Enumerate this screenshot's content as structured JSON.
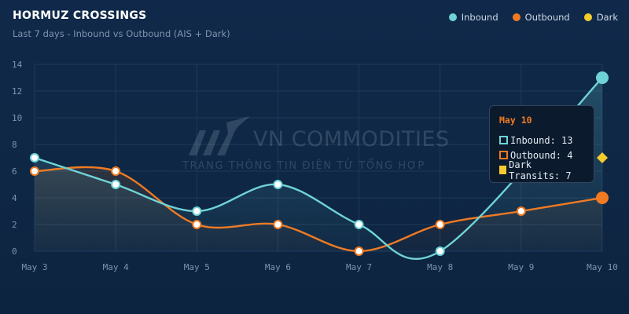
{
  "header": {
    "title": "HORMUZ CROSSINGS",
    "subtitle": "Last 7 days - Inbound vs Outbound (AIS + Dark)"
  },
  "colors": {
    "background": "#10294a",
    "inbound": "#6fd3d6",
    "outbound": "#f07b23",
    "dark": "#f5cc2e",
    "grid": "#1e3a5c",
    "tick": "#7f93ad"
  },
  "legend": [
    {
      "label": "Inbound",
      "color": "#6fd3d6"
    },
    {
      "label": "Outbound",
      "color": "#f07b23"
    },
    {
      "label": "Dark",
      "color": "#f5cc2e"
    }
  ],
  "chart_data": {
    "type": "line",
    "title": "HORMUZ CROSSINGS",
    "subtitle": "Last 7 days - Inbound vs Outbound (AIS + Dark)",
    "categories": [
      "May 3",
      "May 4",
      "May 5",
      "May 6",
      "May 7",
      "May 8",
      "May 9",
      "May 10"
    ],
    "series": [
      {
        "name": "Inbound",
        "values": [
          7,
          5,
          3,
          5,
          2,
          0,
          null,
          13
        ],
        "color": "#6fd3d6",
        "style": "smooth-area"
      },
      {
        "name": "Outbound",
        "values": [
          6,
          6,
          2,
          2,
          0,
          2,
          3,
          4
        ],
        "color": "#f07b23",
        "style": "smooth-area"
      },
      {
        "name": "Dark",
        "values": [
          null,
          null,
          null,
          null,
          null,
          null,
          null,
          7
        ],
        "color": "#f5cc2e",
        "style": "diamond"
      }
    ],
    "yticks": [
      0,
      2,
      4,
      6,
      8,
      10,
      12,
      14
    ],
    "ylim": [
      0,
      14
    ],
    "grid": true,
    "legend_position": "top-right"
  },
  "tooltip": {
    "date": "May 10",
    "rows": [
      {
        "label": "Inbound: 13",
        "color": "#6fd3d6",
        "style": "outline"
      },
      {
        "label": "Outbound: 4",
        "color": "#f07b23",
        "style": "outline"
      },
      {
        "label": "Dark Transits: 7",
        "color": "#f5cc2e",
        "style": "fill"
      }
    ]
  },
  "watermark": {
    "name": "VN COMMODITIES",
    "slogan": "TRANG THÔNG TIN ĐIỆN TỬ TỔNG HỢP"
  }
}
